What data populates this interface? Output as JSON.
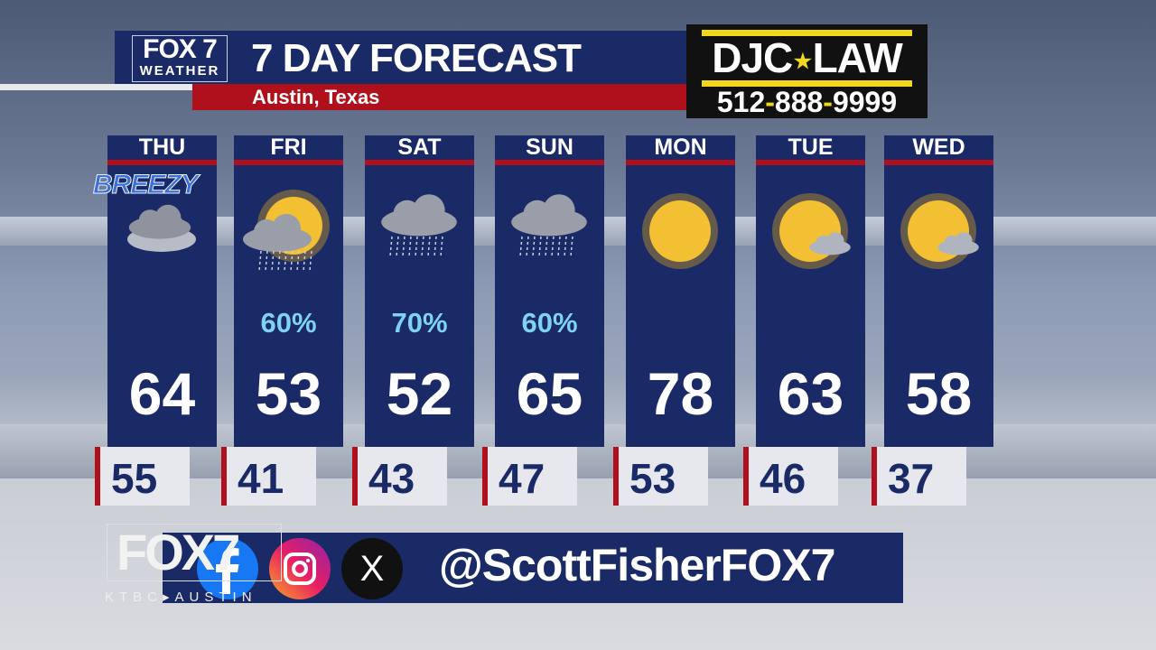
{
  "header": {
    "logo_top": "FOX 7",
    "logo_bottom": "WEATHER",
    "title": "7 DAY FORECAST",
    "location": "Austin, Texas"
  },
  "ad": {
    "name_left": "DJC",
    "star": "★",
    "name_right": "LAW",
    "phone_a": "512",
    "phone_b": "888",
    "phone_c": "9999",
    "sep": "-"
  },
  "days": [
    {
      "day": "THU",
      "badge": "BREEZY",
      "icon": "cloudy",
      "precip": "",
      "high": "64",
      "low": "55"
    },
    {
      "day": "FRI",
      "icon": "sun-cloud-rain",
      "precip": "60%",
      "high": "53",
      "low": "41"
    },
    {
      "day": "SAT",
      "icon": "rain",
      "precip": "70%",
      "high": "52",
      "low": "43"
    },
    {
      "day": "SUN",
      "icon": "rain",
      "precip": "60%",
      "high": "65",
      "low": "47"
    },
    {
      "day": "MON",
      "icon": "sunny",
      "precip": "",
      "high": "78",
      "low": "53"
    },
    {
      "day": "TUE",
      "icon": "mostly-sunny",
      "precip": "",
      "high": "63",
      "low": "46"
    },
    {
      "day": "WED",
      "icon": "mostly-sunny",
      "precip": "",
      "high": "58",
      "low": "37"
    }
  ],
  "social": {
    "station_logo": "FOX7",
    "station_sub": "KTBC▸AUSTIN",
    "x_glyph": "X",
    "handle": "@ScottFisherFOX7",
    "icons": [
      "facebook-icon",
      "instagram-icon",
      "x-icon"
    ]
  },
  "colors": {
    "navy": "#1a2a66",
    "red": "#b0101c",
    "precip": "#7fd3f0",
    "ad_yellow": "#f2d81c"
  }
}
